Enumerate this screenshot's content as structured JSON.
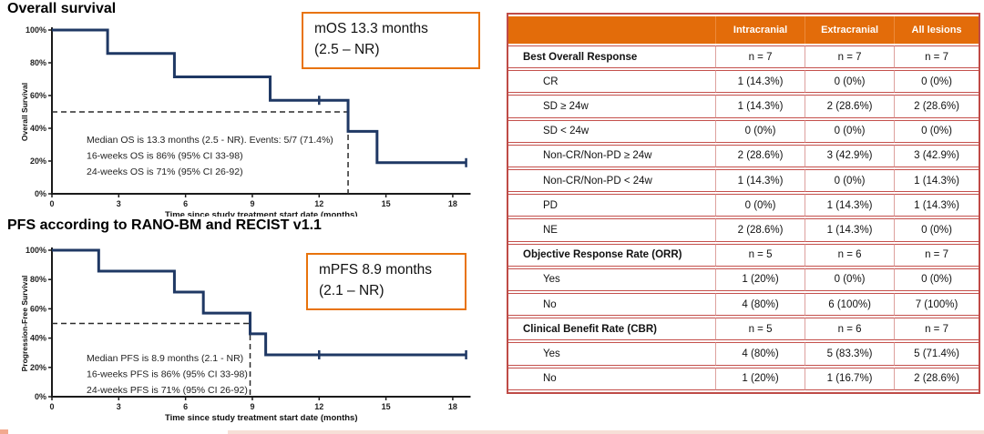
{
  "colors": {
    "curve": "#1F3864",
    "callout_border": "#E8730C",
    "dashed_line": "#2b2b2b",
    "axis": "#1a1a1a",
    "table_header_bg": "#E36C0A",
    "table_border": "#BF4B47"
  },
  "chart_data": [
    {
      "type": "line",
      "subtype": "kaplan-meier-step",
      "title": "Overall survival",
      "ylabel": "Overall Survival",
      "xlabel": "Time since study treatment start date (months)",
      "xlim": [
        0,
        18.8
      ],
      "ylim": [
        0,
        100
      ],
      "x_ticks": [
        0,
        3,
        6,
        9,
        12,
        15,
        18
      ],
      "y_ticks": [
        0,
        20,
        40,
        60,
        80,
        100
      ],
      "steps": [
        [
          0,
          100
        ],
        [
          2.5,
          100
        ],
        [
          2.5,
          85.7
        ],
        [
          5.5,
          85.7
        ],
        [
          5.5,
          71.4
        ],
        [
          9.8,
          71.4
        ],
        [
          9.8,
          57.1
        ],
        [
          13.3,
          57.1
        ],
        [
          13.3,
          38.1
        ],
        [
          14.6,
          38.1
        ],
        [
          14.6,
          19
        ],
        [
          18.6,
          19
        ]
      ],
      "censors": [
        [
          12,
          57.1
        ],
        [
          18.6,
          19
        ]
      ],
      "median": {
        "x": 13.3,
        "y": 50
      },
      "annotations": [
        "Median OS is 13.3 months (2.5 - NR). Events: 5/7 (71.4%)",
        "16-weeks OS is 86% (95% CI 33-98)",
        "24-weeks OS is 71% (95% CI 26-92)"
      ],
      "callout_lines": [
        "mOS 13.3 months",
        "(2.5 – NR)"
      ]
    },
    {
      "type": "line",
      "subtype": "kaplan-meier-step",
      "title": "PFS according to RANO-BM and RECIST v1.1",
      "ylabel": "Progression-Free Survival",
      "xlabel": "Time since study treatment start date (months)",
      "xlim": [
        0,
        18.8
      ],
      "ylim": [
        0,
        100
      ],
      "x_ticks": [
        0,
        3,
        6,
        9,
        12,
        15,
        18
      ],
      "y_ticks": [
        0,
        20,
        40,
        60,
        80,
        100
      ],
      "steps": [
        [
          0,
          100
        ],
        [
          2.1,
          100
        ],
        [
          2.1,
          85.7
        ],
        [
          5.5,
          85.7
        ],
        [
          5.5,
          71.4
        ],
        [
          6.8,
          71.4
        ],
        [
          6.8,
          57.1
        ],
        [
          8.9,
          57.1
        ],
        [
          8.9,
          42.9
        ],
        [
          9.6,
          42.9
        ],
        [
          9.6,
          28.6
        ],
        [
          18.6,
          28.6
        ]
      ],
      "censors": [
        [
          12,
          28.6
        ],
        [
          18.6,
          28.6
        ]
      ],
      "median": {
        "x": 8.9,
        "y": 50
      },
      "annotations": [
        "Median PFS is 8.9 months (2.1 - NR)",
        "16-weeks PFS is 86% (95% CI 33-98)",
        "24-weeks PFS is 71% (95% CI 26-92)"
      ],
      "callout_lines": [
        "mPFS 8.9 months",
        "(2.1 – NR)"
      ]
    }
  ],
  "table": {
    "header": [
      "",
      "Intracranial",
      "Extracranial",
      "All lesions"
    ],
    "rows": [
      {
        "label": "Best Overall Response",
        "bold": true,
        "values": [
          "n = 7",
          "n = 7",
          "n = 7"
        ]
      },
      {
        "label": "CR",
        "bold": false,
        "values": [
          "1 (14.3%)",
          "0 (0%)",
          "0 (0%)"
        ]
      },
      {
        "label": "SD ≥ 24w",
        "bold": false,
        "values": [
          "1 (14.3%)",
          "2 (28.6%)",
          "2 (28.6%)"
        ]
      },
      {
        "label": "SD < 24w",
        "bold": false,
        "values": [
          "0 (0%)",
          "0 (0%)",
          "0 (0%)"
        ]
      },
      {
        "label": "Non-CR/Non-PD ≥ 24w",
        "bold": false,
        "values": [
          "2 (28.6%)",
          "3 (42.9%)",
          "3 (42.9%)"
        ]
      },
      {
        "label": "Non-CR/Non-PD < 24w",
        "bold": false,
        "values": [
          "1 (14.3%)",
          "0 (0%)",
          "1 (14.3%)"
        ]
      },
      {
        "label": "PD",
        "bold": false,
        "values": [
          "0 (0%)",
          "1 (14.3%)",
          "1 (14.3%)"
        ]
      },
      {
        "label": "NE",
        "bold": false,
        "values": [
          "2 (28.6%)",
          "1 (14.3%)",
          "0 (0%)"
        ]
      },
      {
        "label": "Objective Response Rate (ORR)",
        "bold": true,
        "values": [
          "n = 5",
          "n = 6",
          "n = 7"
        ]
      },
      {
        "label": "Yes",
        "bold": false,
        "values": [
          "1 (20%)",
          "0 (0%)",
          "0 (0%)"
        ]
      },
      {
        "label": "No",
        "bold": false,
        "values": [
          "4 (80%)",
          "6 (100%)",
          "7 (100%)"
        ]
      },
      {
        "label": "Clinical Benefit Rate (CBR)",
        "bold": true,
        "values": [
          "n = 5",
          "n = 6",
          "n = 7"
        ]
      },
      {
        "label": "Yes",
        "bold": false,
        "values": [
          "4 (80%)",
          "5 (83.3%)",
          "5 (71.4%)"
        ]
      },
      {
        "label": "No",
        "bold": false,
        "values": [
          "1 (20%)",
          "1 (16.7%)",
          "2 (28.6%)"
        ]
      }
    ]
  }
}
